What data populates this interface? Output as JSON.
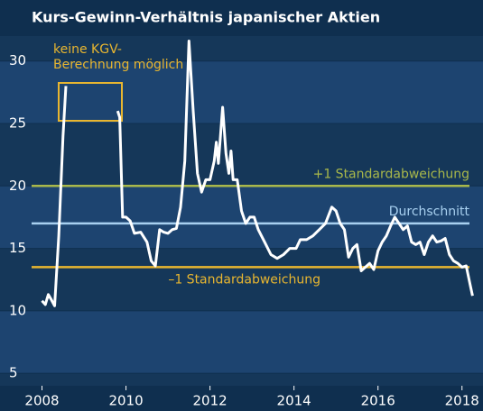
{
  "chart_data": {
    "type": "line",
    "title": "Kurs-Gewinn-Verhältnis japanischer Aktien",
    "annotation": [
      "keine KGV-",
      "Berechnung möglich"
    ],
    "color": "#ffffff",
    "x": [
      2008.0,
      2008.08,
      2008.15,
      2008.22,
      2008.3,
      2008.4,
      2008.5,
      2008.57,
      2009.2,
      2009.8,
      2009.85,
      2009.92,
      2010.0,
      2010.1,
      2010.2,
      2010.35,
      2010.5,
      2010.6,
      2010.7,
      2010.8,
      2010.9,
      2011.0,
      2011.1,
      2011.2,
      2011.3,
      2011.4,
      2011.5,
      2011.6,
      2011.7,
      2011.8,
      2011.9,
      2012.0,
      2012.1,
      2012.15,
      2012.2,
      2012.3,
      2012.38,
      2012.45,
      2012.5,
      2012.55,
      2012.65,
      2012.75,
      2012.85,
      2012.95,
      2013.05,
      2013.15,
      2013.3,
      2013.45,
      2013.6,
      2013.75,
      2013.9,
      2014.05,
      2014.15,
      2014.3,
      2014.45,
      2014.6,
      2014.75,
      2014.9,
      2015.0,
      2015.1,
      2015.2,
      2015.3,
      2015.4,
      2015.5,
      2015.6,
      2015.7,
      2015.8,
      2015.9,
      2016.0,
      2016.1,
      2016.2,
      2016.3,
      2016.4,
      2016.5,
      2016.6,
      2016.7,
      2016.8,
      2016.9,
      2017.0,
      2017.1,
      2017.2,
      2017.3,
      2017.4,
      2017.5,
      2017.6,
      2017.7,
      2017.8,
      2017.9,
      2018.0,
      2018.1,
      2018.2,
      2018.25
    ],
    "values": [
      10.8,
      10.5,
      11.3,
      10.9,
      10.4,
      16,
      24,
      28,
      null,
      26,
      25.5,
      17.5,
      17.5,
      17.2,
      16.2,
      16.3,
      15.5,
      14,
      13.6,
      16.5,
      16.3,
      16.2,
      16.5,
      16.6,
      18.3,
      22,
      31.6,
      26,
      21,
      19.5,
      20.5,
      20.5,
      22,
      23.5,
      21.8,
      26.3,
      22.6,
      21,
      22.8,
      20.5,
      20.5,
      18,
      17,
      17.5,
      17.5,
      16.5,
      15.5,
      14.5,
      14.2,
      14.5,
      15,
      15,
      15.7,
      15.7,
      16,
      16.5,
      17,
      18.3,
      18,
      17,
      16.5,
      14.3,
      15,
      15.3,
      13.2,
      13.5,
      13.8,
      13.3,
      14.8,
      15.5,
      16,
      16.8,
      17.5,
      17,
      16.5,
      16.8,
      15.5,
      15.3,
      15.5,
      14.5,
      15.5,
      16,
      15.5,
      15.6,
      15.8,
      14.5,
      14,
      13.8,
      13.5,
      13.6,
      12,
      11.2
    ],
    "reference_lines": [
      {
        "label": "+1 Standardabweichung",
        "value": 20,
        "color": "#a9b84a"
      },
      {
        "label": "Durchschnitt",
        "value": 17,
        "color": "#a8d0f0"
      },
      {
        "label": "–1 Standardabweichung",
        "value": 13.5,
        "color": "#e8b630"
      }
    ],
    "xlim": [
      2007,
      2018.5
    ],
    "xticks": [
      2008,
      2010,
      2012,
      2014,
      2016,
      2018
    ],
    "ylim": [
      4,
      32
    ],
    "yticks": [
      5,
      10,
      15,
      20,
      25,
      30
    ]
  }
}
